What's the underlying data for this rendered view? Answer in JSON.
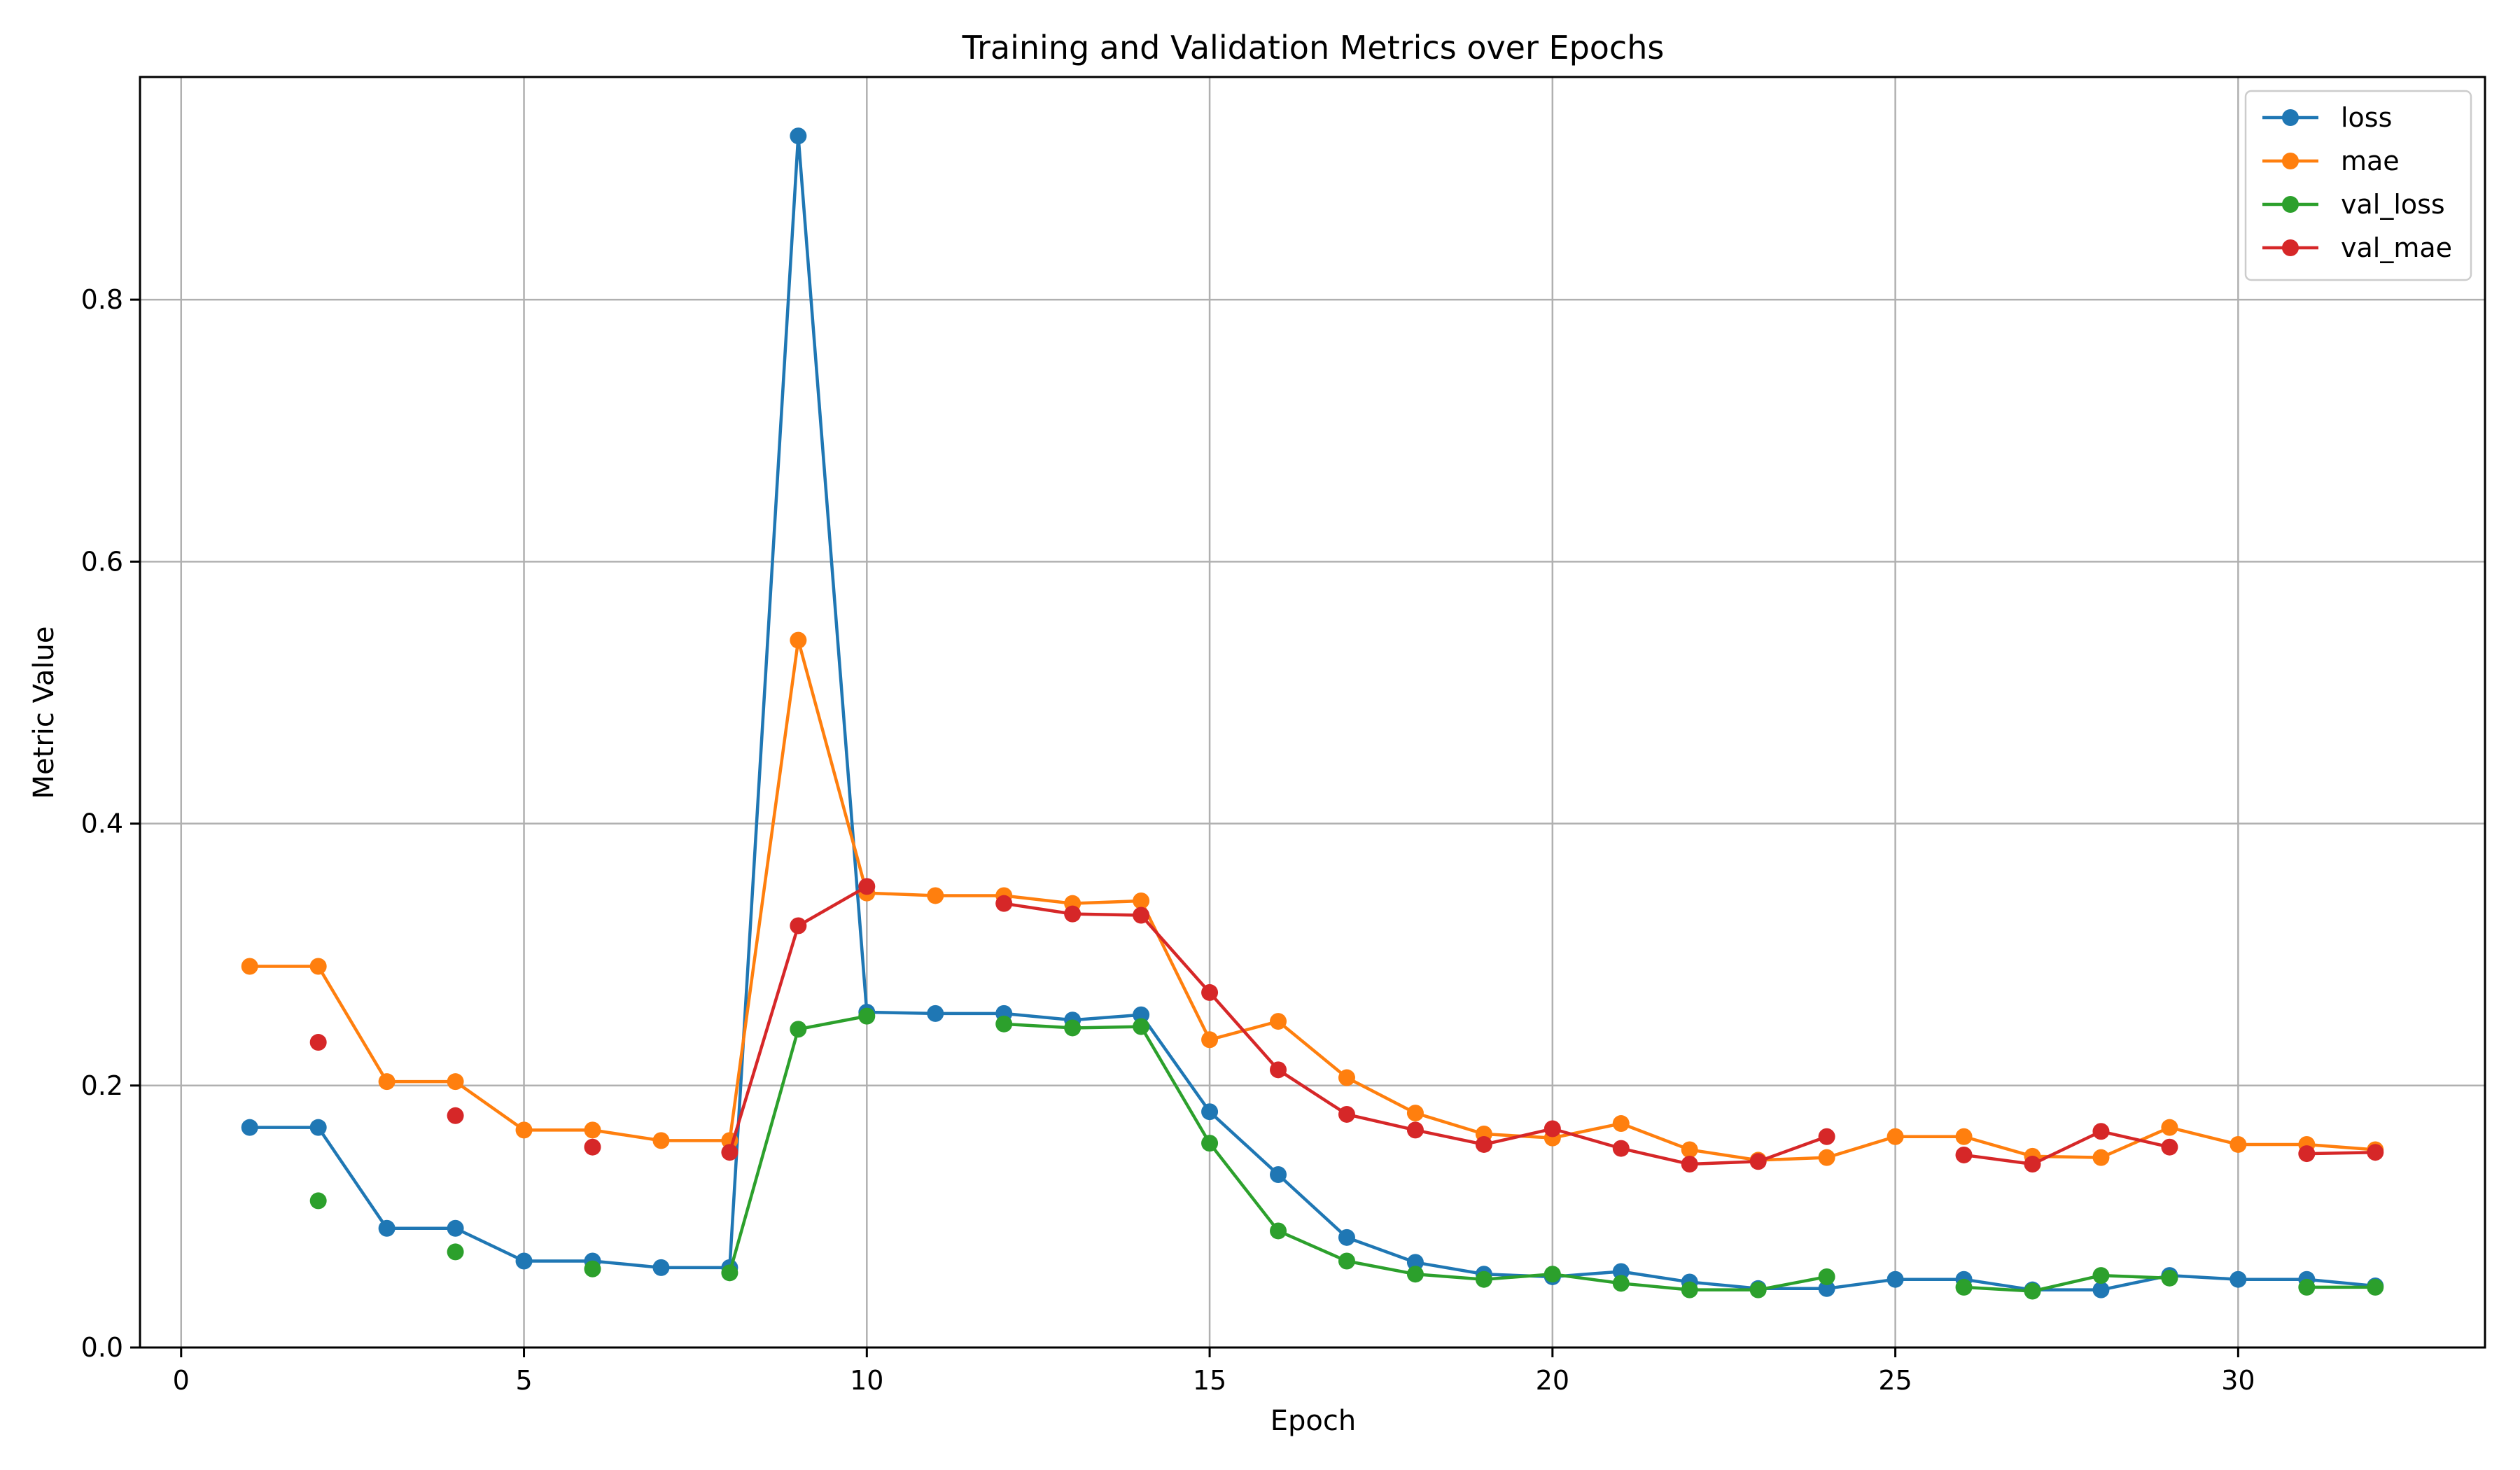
{
  "chart_data": {
    "type": "line",
    "title": "Training and Validation Metrics over Epochs",
    "xlabel": "Epoch",
    "ylabel": "Metric Value",
    "xlim": [
      -0.6,
      33.6
    ],
    "ylim": [
      0,
      0.97
    ],
    "xticks": [
      0,
      5,
      10,
      15,
      20,
      25,
      30
    ],
    "yticks": [
      0.0,
      0.2,
      0.4,
      0.6,
      0.8
    ],
    "ytick_labels": [
      "0.0",
      "0.2",
      "0.4",
      "0.6",
      "0.8"
    ],
    "grid": true,
    "legend_position": "top-right",
    "series": [
      {
        "name": "loss",
        "color": "#1f77b4",
        "points": [
          [
            1,
            0.168
          ],
          [
            2,
            0.168
          ],
          [
            3,
            0.091
          ],
          [
            4,
            0.091
          ],
          [
            5,
            0.066
          ],
          [
            6,
            0.066
          ],
          [
            7,
            0.061
          ],
          [
            8,
            0.061
          ],
          [
            9,
            0.925
          ],
          [
            10,
            0.256
          ],
          [
            11,
            0.255
          ],
          [
            12,
            0.255
          ],
          [
            13,
            0.25
          ],
          [
            14,
            0.254
          ],
          [
            15,
            0.18
          ],
          [
            16,
            0.132
          ],
          [
            17,
            0.084
          ],
          [
            18,
            0.065
          ],
          [
            19,
            0.056
          ],
          [
            20,
            0.054
          ],
          [
            21,
            0.058
          ],
          [
            22,
            0.05
          ],
          [
            23,
            0.045
          ],
          [
            24,
            0.045
          ],
          [
            25,
            0.052
          ],
          [
            26,
            0.052
          ],
          [
            27,
            0.044
          ],
          [
            28,
            0.044
          ],
          [
            29,
            0.055
          ],
          [
            30,
            0.052
          ],
          [
            31,
            0.052
          ],
          [
            32,
            0.047
          ]
        ]
      },
      {
        "name": "mae",
        "color": "#ff7f0e",
        "points": [
          [
            1,
            0.291
          ],
          [
            2,
            0.291
          ],
          [
            3,
            0.203
          ],
          [
            4,
            0.203
          ],
          [
            5,
            0.166
          ],
          [
            6,
            0.166
          ],
          [
            7,
            0.158
          ],
          [
            8,
            0.158
          ],
          [
            9,
            0.54
          ],
          [
            10,
            0.347
          ],
          [
            11,
            0.345
          ],
          [
            12,
            0.345
          ],
          [
            13,
            0.339
          ],
          [
            14,
            0.341
          ],
          [
            15,
            0.235
          ],
          [
            16,
            0.249
          ],
          [
            17,
            0.206
          ],
          [
            18,
            0.179
          ],
          [
            19,
            0.163
          ],
          [
            20,
            0.16
          ],
          [
            21,
            0.171
          ],
          [
            22,
            0.151
          ],
          [
            23,
            0.143
          ],
          [
            24,
            0.145
          ],
          [
            25,
            0.161
          ],
          [
            26,
            0.161
          ],
          [
            27,
            0.146
          ],
          [
            28,
            0.145
          ],
          [
            29,
            0.168
          ],
          [
            30,
            0.155
          ],
          [
            31,
            0.155
          ],
          [
            32,
            0.151
          ]
        ]
      },
      {
        "name": "val_loss",
        "color": "#2ca02c",
        "points": [
          [
            2,
            0.112
          ],
          [
            4,
            0.073
          ],
          [
            6,
            0.06
          ],
          [
            8,
            0.057
          ],
          [
            9,
            0.243
          ],
          [
            10,
            0.253
          ],
          [
            12,
            0.247
          ],
          [
            13,
            0.244
          ],
          [
            14,
            0.245
          ],
          [
            15,
            0.156
          ],
          [
            16,
            0.089
          ],
          [
            17,
            0.066
          ],
          [
            18,
            0.056
          ],
          [
            19,
            0.052
          ],
          [
            20,
            0.056
          ],
          [
            21,
            0.049
          ],
          [
            22,
            0.044
          ],
          [
            23,
            0.044
          ],
          [
            24,
            0.054
          ],
          [
            26,
            0.046
          ],
          [
            27,
            0.043
          ],
          [
            28,
            0.055
          ],
          [
            29,
            0.053
          ],
          [
            31,
            0.046
          ],
          [
            32,
            0.046
          ]
        ]
      },
      {
        "name": "val_mae",
        "color": "#d62728",
        "points": [
          [
            2,
            0.233
          ],
          [
            4,
            0.177
          ],
          [
            6,
            0.153
          ],
          [
            8,
            0.149
          ],
          [
            9,
            0.322
          ],
          [
            10,
            0.352
          ],
          [
            12,
            0.339
          ],
          [
            13,
            0.331
          ],
          [
            14,
            0.33
          ],
          [
            15,
            0.271
          ],
          [
            16,
            0.212
          ],
          [
            17,
            0.178
          ],
          [
            18,
            0.166
          ],
          [
            19,
            0.155
          ],
          [
            20,
            0.167
          ],
          [
            21,
            0.152
          ],
          [
            22,
            0.14
          ],
          [
            23,
            0.142
          ],
          [
            24,
            0.161
          ],
          [
            26,
            0.147
          ],
          [
            27,
            0.14
          ],
          [
            28,
            0.165
          ],
          [
            29,
            0.153
          ],
          [
            31,
            0.148
          ],
          [
            32,
            0.149
          ]
        ]
      }
    ]
  }
}
